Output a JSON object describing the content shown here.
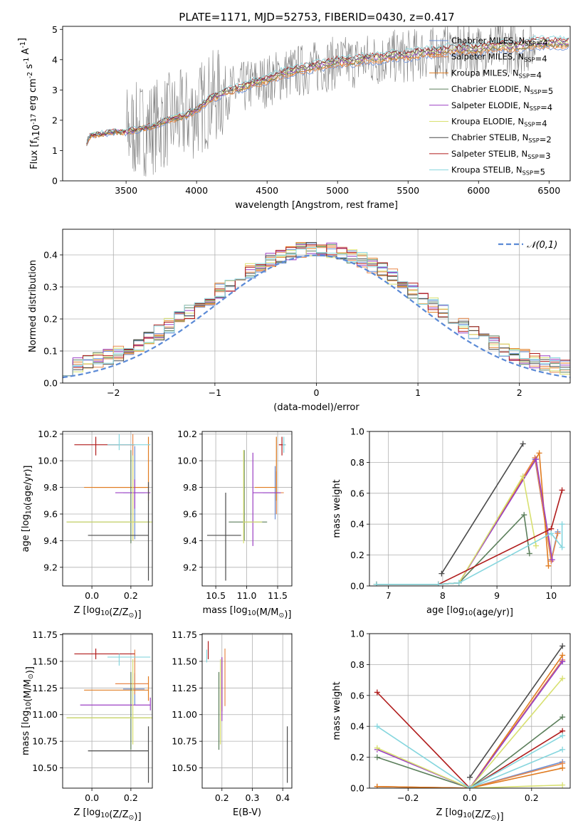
{
  "figure_title": "PLATE=1171, MJD=52753, FIBERID=0430, z=0.417",
  "models": [
    {
      "name": "Chabrier MILES, N$_{SSP}$=4",
      "color": "#6b8fd6"
    },
    {
      "name": "Salpeter MILES, N$_{SSP}$=4",
      "color": "#e8884a"
    },
    {
      "name": "Kroupa MILES, N$_{SSP}$=4",
      "color": "#e07b1f"
    },
    {
      "name": "Chabrier ELODIE, N$_{SSP}$=5",
      "color": "#5b7f5b"
    },
    {
      "name": "Salpeter ELODIE, N$_{SSP}$=4",
      "color": "#9b3fc4"
    },
    {
      "name": "Kroupa ELODIE, N$_{SSP}$=4",
      "color": "#d8e070"
    },
    {
      "name": "Chabrier STELIB, N$_{SSP}$=2",
      "color": "#4a4a4a"
    },
    {
      "name": "Salpeter STELIB, N$_{SSP}$=3",
      "color": "#b01c1c"
    },
    {
      "name": "Kroupa STELIB, N$_{SSP}$=5",
      "color": "#86d6de"
    }
  ],
  "chart_data": [
    {
      "id": "spectrum",
      "type": "line",
      "xlabel": "wavelength [Angstrom, rest frame]",
      "ylabel": "Flux [f$_\\lambda$10$^{-17}$ erg cm$^{-2}$ s$^{-1}$ A$^{-1}$]",
      "xlim": [
        3050,
        6650
      ],
      "ylim": [
        0,
        5.1
      ],
      "xticks": [
        3500,
        4000,
        4500,
        5000,
        5500,
        6000,
        6500
      ],
      "yticks": [
        0,
        1,
        2,
        3,
        4,
        5
      ],
      "data_color": "#808080",
      "data_x": [
        3200,
        3250,
        3300,
        3400,
        3500,
        3600,
        3700,
        3800,
        3900,
        4000,
        4100,
        4200,
        4300,
        4400,
        4500,
        4600,
        4700,
        4800,
        4900,
        5000,
        5100,
        5200,
        5300,
        5400,
        5500,
        5600,
        5700,
        5800,
        5900,
        6000,
        6100,
        6200,
        6300,
        6400,
        6500,
        6600
      ],
      "data_y": [
        1.1,
        1.5,
        1.5,
        1.6,
        1.6,
        1.7,
        1.8,
        2.0,
        2.1,
        2.3,
        2.7,
        2.9,
        3.0,
        3.2,
        3.3,
        3.5,
        3.6,
        3.7,
        3.8,
        3.9,
        3.9,
        4.0,
        4.0,
        4.1,
        4.1,
        4.2,
        4.2,
        4.3,
        4.3,
        4.3,
        4.4,
        4.4,
        4.4,
        4.5,
        4.5,
        4.5
      ],
      "noise_range": [
        3500,
        6400
      ]
    },
    {
      "id": "residuals",
      "type": "step",
      "xlabel": "(data-model)/error",
      "ylabel": "Normed distribution",
      "xlim": [
        -2.5,
        2.5
      ],
      "ylim": [
        0,
        0.48
      ],
      "xticks": [
        -2,
        -1,
        0,
        1,
        2
      ],
      "yticks": [
        0,
        0.1,
        0.2,
        0.3,
        0.4
      ],
      "bin_width": 0.1,
      "legend": "$\\mathcal{N}(0,1)$",
      "gauss_color": "#5b8ad6"
    },
    {
      "id": "age_vs_Z",
      "type": "errorbar",
      "xlabel": "Z [log$_{10}$(Z/Z$_\\odot$)]",
      "ylabel": "age  [log$_{10}$(age/yr)]",
      "xlim": [
        -0.15,
        0.31
      ],
      "ylim": [
        9.06,
        10.22
      ],
      "xticks": [
        0.0,
        0.2
      ],
      "yticks": [
        9.2,
        9.4,
        9.6,
        9.8,
        10.0,
        10.2
      ],
      "points": [
        {
          "m": 0,
          "x": 0.22,
          "y": 9.76,
          "xerr": [
            0.06,
            0.05
          ],
          "yerr": [
            0.35,
            0.35
          ]
        },
        {
          "m": 1,
          "x": 0.21,
          "y": 9.8,
          "xerr": [
            0.2,
            0.07
          ],
          "yerr": [
            0.4,
            0.4
          ]
        },
        {
          "m": 2,
          "x": 0.29,
          "y": 9.8,
          "xerr": [
            0.33,
            0.0
          ],
          "yerr": [
            0.1,
            0.38
          ]
        },
        {
          "m": 3,
          "x": 0.2,
          "y": 9.54,
          "xerr": [
            0.33,
            0.1
          ],
          "yerr": [
            0.16,
            0.54
          ]
        },
        {
          "m": 4,
          "x": 0.22,
          "y": 9.76,
          "xerr": [
            0.1,
            0.08
          ],
          "yerr": [
            0.12,
            0.1
          ]
        },
        {
          "m": 5,
          "x": 0.21,
          "y": 9.54,
          "xerr": [
            0.34,
            0.1
          ],
          "yerr": [
            0.14,
            0.5
          ]
        },
        {
          "m": 6,
          "x": 0.29,
          "y": 9.44,
          "xerr": [
            0.31,
            0.0
          ],
          "yerr": [
            0.34,
            0.4
          ]
        },
        {
          "m": 7,
          "x": 0.02,
          "y": 10.12,
          "xerr": [
            0.11,
            0.2
          ],
          "yerr": [
            0.08,
            0.06
          ]
        },
        {
          "m": 8,
          "x": 0.14,
          "y": 10.12,
          "xerr": [
            0.06,
            0.16
          ],
          "yerr": [
            0.04,
            0.08
          ]
        }
      ]
    },
    {
      "id": "age_vs_mass",
      "type": "errorbar",
      "xlabel": "mass [log$_{10}$(M/M$_\\odot$)]",
      "ylabel": "",
      "xlim": [
        10.28,
        11.73
      ],
      "ylim": [
        9.06,
        10.22
      ],
      "xticks": [
        10.5,
        11.0,
        11.5
      ],
      "yticks": [
        9.2,
        9.4,
        9.6,
        9.8,
        10.0,
        10.2
      ],
      "points": [
        {
          "m": 0,
          "x": 11.46,
          "y": 9.76,
          "xerr": [
            0.2,
            0.1
          ],
          "yerr": [
            0.2,
            0.2
          ]
        },
        {
          "m": 1,
          "x": 11.48,
          "y": 9.76,
          "xerr": [
            0.1,
            0.12
          ],
          "yerr": [
            0.16,
            0.16
          ]
        },
        {
          "m": 2,
          "x": 11.48,
          "y": 9.8,
          "xerr": [
            0.35,
            0.0
          ],
          "yerr": [
            0.1,
            0.38
          ]
        },
        {
          "m": 3,
          "x": 10.96,
          "y": 9.54,
          "xerr": [
            0.25,
            0.37
          ],
          "yerr": [
            0.14,
            0.54
          ]
        },
        {
          "m": 4,
          "x": 11.1,
          "y": 9.76,
          "xerr": [
            0.0,
            0.45
          ],
          "yerr": [
            0.4,
            0.3
          ]
        },
        {
          "m": 5,
          "x": 10.95,
          "y": 9.54,
          "xerr": [
            0.0,
            0.3
          ],
          "yerr": [
            0.16,
            0.54
          ]
        },
        {
          "m": 6,
          "x": 10.66,
          "y": 9.44,
          "xerr": [
            0.3,
            0.25
          ],
          "yerr": [
            0.34,
            0.32
          ]
        },
        {
          "m": 7,
          "x": 11.57,
          "y": 10.12,
          "xerr": [
            0.05,
            0.06
          ],
          "yerr": [
            0.08,
            0.06
          ]
        },
        {
          "m": 8,
          "x": 11.6,
          "y": 10.12,
          "xerr": [
            0.02,
            0.03
          ],
          "yerr": [
            0.06,
            0.06
          ]
        }
      ]
    },
    {
      "id": "weight_vs_age",
      "type": "line",
      "xlabel": "age  [log$_{10}$(age/yr)]",
      "ylabel": "mass weight",
      "xlim": [
        6.65,
        10.35
      ],
      "ylim": [
        0,
        1.0
      ],
      "xticks": [
        7,
        8,
        9,
        10
      ],
      "yticks": [
        0.0,
        0.2,
        0.4,
        0.6,
        0.8,
        1.0
      ],
      "series": [
        {
          "m": 0,
          "x": [
            6.78,
            7.92,
            8.3,
            9.7,
            10.0,
            10.12
          ],
          "y": [
            0.01,
            0.01,
            0.02,
            0.82,
            0.17,
            0.35
          ]
        },
        {
          "m": 1,
          "x": [
            6.78,
            7.92,
            8.3,
            9.7,
            10.0,
            10.12
          ],
          "y": [
            0.01,
            0.01,
            0.02,
            0.83,
            0.16,
            0.34
          ]
        },
        {
          "m": 2,
          "x": [
            6.78,
            7.92,
            8.3,
            9.78,
            9.95
          ],
          "y": [
            0.01,
            0.01,
            0.02,
            0.86,
            0.13
          ]
        },
        {
          "m": 3,
          "x": [
            6.78,
            7.92,
            8.3,
            9.5,
            9.6
          ],
          "y": [
            0.01,
            0.01,
            0.02,
            0.46,
            0.21
          ]
        },
        {
          "m": 4,
          "x": [
            6.78,
            7.92,
            8.3,
            9.72,
            10.02
          ],
          "y": [
            0.01,
            0.01,
            0.02,
            0.82,
            0.17
          ]
        },
        {
          "m": 5,
          "x": [
            6.78,
            7.92,
            8.3,
            9.48,
            9.72
          ],
          "y": [
            0.01,
            0.01,
            0.02,
            0.71,
            0.26
          ]
        },
        {
          "m": 6,
          "x": [
            7.98,
            9.48
          ],
          "y": [
            0.08,
            0.92
          ]
        },
        {
          "m": 7,
          "x": [
            7.92,
            10.0,
            10.2
          ],
          "y": [
            0.01,
            0.37,
            0.62
          ]
        },
        {
          "m": 8,
          "x": [
            6.78,
            7.92,
            8.3,
            10.0,
            10.2,
            10.2
          ],
          "y": [
            0.01,
            0.01,
            0.02,
            0.34,
            0.25,
            0.4
          ]
        }
      ]
    },
    {
      "id": "mass_vs_Z",
      "type": "errorbar",
      "xlabel": "Z [log$_{10}$(Z/Z$_\\odot$)]",
      "ylabel": "mass [log$_{10}$(M/M$_\\odot$)]",
      "xlim": [
        -0.15,
        0.31
      ],
      "ylim": [
        10.31,
        11.76
      ],
      "xticks": [
        0.0,
        0.2
      ],
      "yticks": [
        10.5,
        10.75,
        11.0,
        11.25,
        11.5,
        11.75
      ],
      "points": [
        {
          "m": 0,
          "x": 0.22,
          "y": 11.24,
          "xerr": [
            0.06,
            0.05
          ],
          "yerr": [
            0.15,
            0.15
          ]
        },
        {
          "m": 1,
          "x": 0.22,
          "y": 11.29,
          "xerr": [
            0.1,
            0.07
          ],
          "yerr": [
            0.1,
            0.32
          ]
        },
        {
          "m": 2,
          "x": 0.29,
          "y": 11.23,
          "xerr": [
            0.33,
            0.0
          ],
          "yerr": [
            0.1,
            0.13
          ]
        },
        {
          "m": 3,
          "x": 0.2,
          "y": 10.97,
          "xerr": [
            0.33,
            0.1
          ],
          "yerr": [
            0.3,
            0.43
          ]
        },
        {
          "m": 4,
          "x": 0.3,
          "y": 11.09,
          "xerr": [
            0.36,
            0.0
          ],
          "yerr": [
            0.05,
            0.07
          ]
        },
        {
          "m": 5,
          "x": 0.21,
          "y": 10.97,
          "xerr": [
            0.34,
            0.1
          ],
          "yerr": [
            0.25,
            0.55
          ]
        },
        {
          "m": 6,
          "x": 0.29,
          "y": 10.66,
          "xerr": [
            0.31,
            0.0
          ],
          "yerr": [
            0.3,
            0.23
          ]
        },
        {
          "m": 7,
          "x": 0.02,
          "y": 11.57,
          "xerr": [
            0.11,
            0.2
          ],
          "yerr": [
            0.05,
            0.05
          ]
        },
        {
          "m": 8,
          "x": 0.14,
          "y": 11.54,
          "xerr": [
            0.06,
            0.16
          ],
          "yerr": [
            0.08,
            0.03
          ]
        }
      ]
    },
    {
      "id": "mass_vs_EBV",
      "type": "errorbar",
      "xlabel": "E(B-V)",
      "ylabel": "",
      "xlim": [
        0.135,
        0.43
      ],
      "ylim": [
        10.31,
        11.76
      ],
      "xticks": [
        0.2,
        0.3,
        0.4
      ],
      "yticks": [
        10.5,
        10.75,
        11.0,
        11.25,
        11.5,
        11.75
      ],
      "points": [
        {
          "m": 0,
          "x": 0.2,
          "y": 11.3,
          "xerr": [
            0.0,
            0.0
          ],
          "yerr": [
            0.25,
            0.2
          ]
        },
        {
          "m": 1,
          "x": 0.21,
          "y": 11.3,
          "xerr": [
            0.0,
            0.0
          ],
          "yerr": [
            0.22,
            0.32
          ]
        },
        {
          "m": 2,
          "x": 0.2,
          "y": 11.23,
          "xerr": [
            0.0,
            0.0
          ],
          "yerr": [
            0.2,
            0.3
          ]
        },
        {
          "m": 3,
          "x": 0.19,
          "y": 10.97,
          "xerr": [
            0.0,
            0.0
          ],
          "yerr": [
            0.3,
            0.43
          ]
        },
        {
          "m": 4,
          "x": 0.2,
          "y": 11.09,
          "xerr": [
            0.0,
            0.0
          ],
          "yerr": [
            0.15,
            0.45
          ]
        },
        {
          "m": 5,
          "x": 0.195,
          "y": 10.97,
          "xerr": [
            0.0,
            0.0
          ],
          "yerr": [
            0.25,
            0.55
          ]
        },
        {
          "m": 6,
          "x": 0.415,
          "y": 10.66,
          "xerr": [
            0.0,
            0.0
          ],
          "yerr": [
            0.3,
            0.23
          ]
        },
        {
          "m": 7,
          "x": 0.155,
          "y": 11.57,
          "xerr": [
            0.0,
            0.0
          ],
          "yerr": [
            0.05,
            0.12
          ]
        },
        {
          "m": 8,
          "x": 0.15,
          "y": 11.54,
          "xerr": [
            0.0,
            0.0
          ],
          "yerr": [
            0.05,
            0.07
          ]
        }
      ]
    },
    {
      "id": "weight_vs_Z",
      "type": "line",
      "xlabel": "Z [log$_{10}$(Z/Z$_\\odot$)]",
      "ylabel": "mass weight",
      "xlim": [
        -0.325,
        0.325
      ],
      "ylim": [
        0,
        1.0
      ],
      "xticks": [
        -0.2,
        0.0,
        0.2
      ],
      "yticks": [
        0.0,
        0.2,
        0.4,
        0.6,
        0.8,
        1.0
      ],
      "series": [
        {
          "m": 0,
          "x": [
            -0.3,
            0.0,
            0.3,
            0.0,
            0.3
          ],
          "y": [
            0.01,
            0.0,
            0.82,
            0.0,
            0.17
          ]
        },
        {
          "m": 1,
          "x": [
            -0.3,
            0.0,
            0.3,
            0.0,
            0.3
          ],
          "y": [
            0.01,
            0.0,
            0.83,
            0.0,
            0.16
          ]
        },
        {
          "m": 2,
          "x": [
            -0.3,
            0.0,
            0.3,
            0.0,
            0.3
          ],
          "y": [
            0.01,
            0.0,
            0.86,
            0.0,
            0.13
          ]
        },
        {
          "m": 3,
          "x": [
            -0.3,
            0.0,
            0.3
          ],
          "y": [
            0.2,
            0.0,
            0.46
          ]
        },
        {
          "m": 4,
          "x": [
            -0.3,
            0.0,
            0.3
          ],
          "y": [
            0.25,
            0.0,
            0.82
          ]
        },
        {
          "m": 5,
          "x": [
            -0.3,
            0.0,
            0.3,
            0.0,
            0.3
          ],
          "y": [
            0.26,
            0.0,
            0.71,
            0.0,
            0.02
          ]
        },
        {
          "m": 6,
          "x": [
            0.0,
            0.3
          ],
          "y": [
            0.07,
            0.92
          ]
        },
        {
          "m": 7,
          "x": [
            -0.3,
            0.0,
            0.3
          ],
          "y": [
            0.62,
            0.0,
            0.37
          ]
        },
        {
          "m": 8,
          "x": [
            -0.3,
            0.0,
            0.3,
            0.0,
            0.3
          ],
          "y": [
            0.4,
            0.0,
            0.34,
            0.0,
            0.25
          ]
        }
      ]
    }
  ]
}
